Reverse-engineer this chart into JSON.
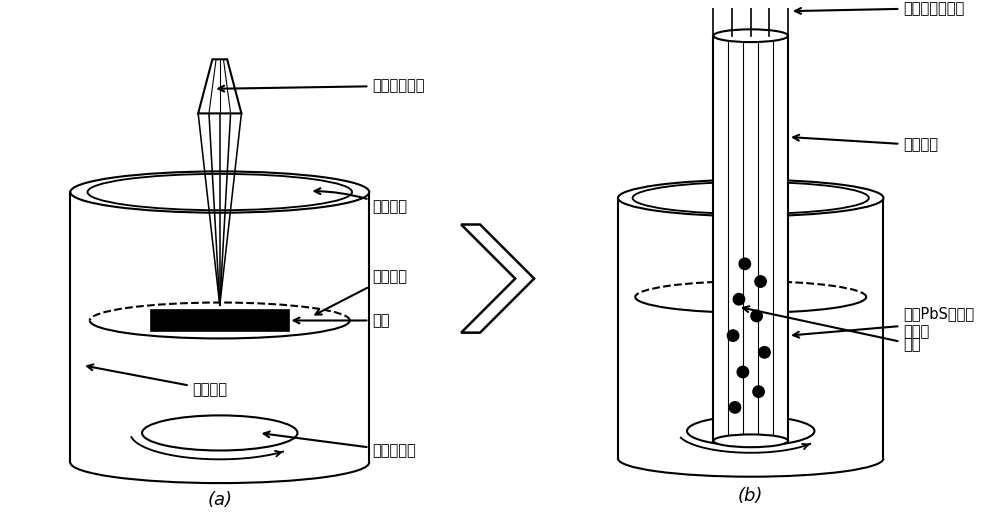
{
  "fig_width": 10.0,
  "fig_height": 5.3,
  "dpi": 100,
  "bg_color": "#ffffff",
  "label_a": "(a)",
  "label_b": "(b)",
  "labels_a": {
    "laser_a": "聚焦毫秒激光",
    "beaker": "玻璃烧杯",
    "holder": "靶材支架",
    "target": "铅靶",
    "ddt": "十二硫醇",
    "stirrer": "磁力搅拌子"
  },
  "labels_b": {
    "laser_b": "未聚焦毫秒激光",
    "tube": "石英试管",
    "suspension": "初始PbS纳米晶\n悬浮液",
    "bath": "水浴"
  },
  "line_color": "#000000",
  "line_width": 1.5
}
